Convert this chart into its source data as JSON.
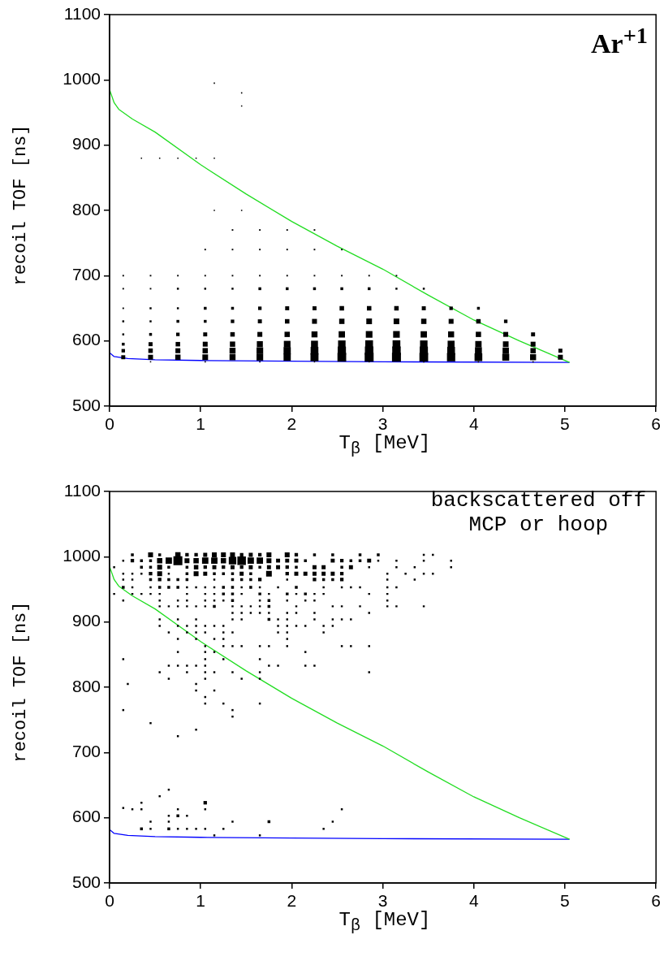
{
  "chart_data": [
    {
      "type": "bubble",
      "xlabel": "T$_{β}$ [MeV]",
      "ylabel": "recoil TOF [ns]",
      "xlim": [
        0,
        6
      ],
      "xticks": [
        0,
        1,
        2,
        3,
        4,
        5,
        6
      ],
      "ylim": [
        500,
        1100
      ],
      "yticks": [
        500,
        600,
        700,
        800,
        900,
        1000,
        1100
      ],
      "grid": false,
      "legend": false,
      "marker": "square",
      "annotations": [
        "Ar$^{+1}$"
      ],
      "series": [
        {
          "type": "bubble",
          "color": "#000000",
          "x": [
            0.15,
            0.45,
            0.75,
            1.05,
            1.35,
            1.65,
            1.95,
            2.25,
            2.55,
            2.85,
            3.15,
            3.45,
            3.75,
            4.05,
            4.35,
            4.65,
            4.95
          ],
          "values": [
            575,
            575,
            575,
            575,
            575,
            575,
            575,
            575,
            575,
            575,
            575,
            575,
            575,
            575,
            575,
            575,
            575
          ],
          "sizes": [
            0.2,
            0.3,
            0.35,
            0.4,
            0.45,
            0.55,
            0.65,
            0.8,
            0.95,
            1,
            1,
            0.95,
            0.85,
            0.75,
            0.6,
            0.45,
            0.3
          ]
        },
        {
          "type": "bubble",
          "color": "#000000",
          "x": [
            0.15,
            0.45,
            0.75,
            1.05,
            1.35,
            1.65,
            1.95,
            2.25,
            2.55,
            2.85,
            3.15,
            3.45,
            3.75,
            4.05,
            4.35,
            4.65,
            4.95
          ],
          "values": [
            585,
            585,
            585,
            585,
            585,
            585,
            585,
            585,
            585,
            585,
            585,
            585,
            585,
            585,
            585,
            585,
            585
          ],
          "sizes": [
            0.15,
            0.25,
            0.3,
            0.35,
            0.45,
            0.55,
            0.65,
            0.75,
            0.85,
            0.9,
            0.9,
            0.85,
            0.75,
            0.6,
            0.5,
            0.35,
            0.2
          ]
        },
        {
          "type": "bubble",
          "color": "#000000",
          "x": [
            0.15,
            0.45,
            0.75,
            1.05,
            1.35,
            1.65,
            1.95,
            2.25,
            2.55,
            2.85,
            3.15,
            3.45,
            3.75,
            4.05,
            4.35,
            4.65
          ],
          "values": [
            595,
            595,
            595,
            595,
            595,
            595,
            595,
            595,
            595,
            595,
            595,
            595,
            595,
            595,
            595,
            595
          ],
          "sizes": [
            0.1,
            0.2,
            0.25,
            0.3,
            0.35,
            0.45,
            0.55,
            0.6,
            0.7,
            0.75,
            0.75,
            0.7,
            0.6,
            0.5,
            0.4,
            0.3
          ]
        },
        {
          "type": "bubble",
          "color": "#000000",
          "x": [
            0.15,
            0.45,
            0.75,
            1.05,
            1.35,
            1.65,
            1.95,
            2.25,
            2.55,
            2.85,
            3.15,
            3.45,
            3.75,
            4.05,
            4.35,
            4.65
          ],
          "values": [
            610,
            610,
            610,
            610,
            610,
            610,
            610,
            610,
            610,
            610,
            610,
            610,
            610,
            610,
            610,
            610
          ],
          "sizes": [
            0.05,
            0.1,
            0.15,
            0.2,
            0.25,
            0.3,
            0.35,
            0.45,
            0.5,
            0.55,
            0.55,
            0.5,
            0.45,
            0.35,
            0.3,
            0.2
          ]
        },
        {
          "type": "bubble",
          "color": "#000000",
          "x": [
            0.15,
            0.45,
            0.75,
            1.05,
            1.35,
            1.65,
            1.95,
            2.25,
            2.55,
            2.85,
            3.15,
            3.45,
            3.75,
            4.05,
            4.35
          ],
          "values": [
            630,
            630,
            630,
            630,
            630,
            630,
            630,
            630,
            630,
            630,
            630,
            630,
            630,
            630,
            630
          ],
          "sizes": [
            0.05,
            0.05,
            0.1,
            0.1,
            0.15,
            0.2,
            0.25,
            0.3,
            0.35,
            0.4,
            0.4,
            0.35,
            0.3,
            0.25,
            0.15
          ]
        },
        {
          "type": "bubble",
          "color": "#000000",
          "x": [
            0.15,
            0.45,
            0.75,
            1.05,
            1.35,
            1.65,
            1.95,
            2.25,
            2.55,
            2.85,
            3.15,
            3.45,
            3.75,
            4.05
          ],
          "values": [
            650,
            650,
            650,
            650,
            650,
            650,
            650,
            650,
            650,
            650,
            650,
            650,
            650,
            650
          ],
          "sizes": [
            0.03,
            0.05,
            0.05,
            0.1,
            0.1,
            0.15,
            0.2,
            0.2,
            0.25,
            0.25,
            0.25,
            0.2,
            0.15,
            0.1
          ]
        },
        {
          "type": "bubble",
          "color": "#000000",
          "x": [
            0.15,
            0.45,
            0.75,
            1.05,
            1.35,
            1.65,
            1.95,
            2.25,
            2.55,
            2.85,
            3.15,
            3.45
          ],
          "values": [
            680,
            680,
            680,
            680,
            680,
            680,
            680,
            680,
            680,
            680,
            680,
            680
          ],
          "sizes": [
            0.03,
            0.03,
            0.05,
            0.05,
            0.05,
            0.1,
            0.1,
            0.1,
            0.1,
            0.1,
            0.05,
            0.05
          ]
        },
        {
          "type": "bubble",
          "color": "#000000",
          "x": [
            0.15,
            0.45,
            0.75,
            1.05,
            1.35,
            1.65,
            1.95,
            2.25,
            2.55,
            2.85,
            3.15
          ],
          "values": [
            700,
            700,
            700,
            700,
            700,
            700,
            700,
            700,
            700,
            700,
            700
          ],
          "sizes": [
            0.03,
            0.03,
            0.03,
            0.03,
            0.03,
            0.03,
            0.03,
            0.03,
            0.03,
            0.03,
            0.03
          ]
        },
        {
          "type": "bubble",
          "color": "#000000",
          "x": [
            1.05,
            1.35,
            1.65,
            1.95,
            2.25,
            2.55
          ],
          "values": [
            740,
            740,
            740,
            740,
            740,
            740
          ],
          "sizes": [
            0.03,
            0.03,
            0.03,
            0.03,
            0.03,
            0.03
          ]
        },
        {
          "type": "bubble",
          "color": "#000000",
          "x": [
            1.35,
            1.65,
            1.95,
            2.25
          ],
          "values": [
            770,
            770,
            770,
            770
          ],
          "sizes": [
            0.03,
            0.03,
            0.03,
            0.03
          ]
        },
        {
          "type": "bubble",
          "color": "#000000",
          "x": [
            1.15,
            1.45
          ],
          "values": [
            800,
            800
          ],
          "sizes": [
            0.02,
            0.02
          ]
        },
        {
          "type": "bubble",
          "color": "#000000",
          "x": [
            0.35,
            0.55,
            0.75,
            0.95,
            1.15
          ],
          "values": [
            880,
            880,
            880,
            880,
            880
          ],
          "sizes": [
            0.02,
            0.02,
            0.02,
            0.02,
            0.02
          ]
        },
        {
          "type": "bubble",
          "color": "#000000",
          "x": [
            1.45,
            1.45,
            1.15
          ],
          "values": [
            960,
            980,
            995
          ],
          "sizes": [
            0.02,
            0.02,
            0.02
          ]
        },
        {
          "type": "bubble",
          "color": "#000000",
          "x": [
            0.45,
            1.05,
            1.65,
            2.25,
            2.85,
            3.45,
            4.05,
            4.65
          ],
          "values": [
            568,
            568,
            568,
            568,
            568,
            568,
            568,
            568
          ],
          "sizes": [
            0.02,
            0.02,
            0.02,
            0.02,
            0.02,
            0.02,
            0.02,
            0.02
          ]
        },
        {
          "type": "line",
          "color": "#22dd22",
          "marker": "none",
          "x": [
            0,
            0.05,
            0.1,
            0.25,
            0.5,
            1,
            1.5,
            2,
            2.5,
            3,
            3.5,
            4,
            4.5,
            5.05
          ],
          "values": [
            985,
            965,
            955,
            940,
            920,
            870,
            825,
            783,
            745,
            710,
            670,
            632,
            600,
            567
          ]
        },
        {
          "type": "line",
          "color": "#0000ff",
          "marker": "none",
          "x": [
            0,
            0.05,
            0.2,
            0.5,
            1,
            2,
            3,
            5.05
          ],
          "values": [
            582,
            576,
            573,
            571,
            570,
            569,
            568,
            567
          ]
        }
      ]
    },
    {
      "type": "bubble",
      "xlabel": "T$_{β}$ [MeV]",
      "ylabel": "recoil TOF [ns]",
      "xlim": [
        0,
        6
      ],
      "xticks": [
        0,
        1,
        2,
        3,
        4,
        5,
        6
      ],
      "ylim": [
        500,
        1100
      ],
      "yticks": [
        500,
        600,
        700,
        800,
        900,
        1000,
        1100
      ],
      "grid": false,
      "legend": false,
      "marker": "square",
      "annotations": [
        "backscattered off\nMCP or hoop"
      ],
      "series": [
        {
          "type": "bubble",
          "color": "#000000",
          "x": [
            0.25,
            0.45,
            0.55,
            0.75,
            0.85,
            0.95,
            1.05,
            1.15,
            1.25,
            1.35,
            1.45,
            1.55,
            1.65,
            1.75,
            1.95,
            2.05,
            2.25,
            2.45,
            2.75,
            2.95,
            3.45,
            3.55
          ],
          "values": [
            1003,
            1003,
            1003,
            1003,
            1003,
            1003,
            1003,
            1003,
            1003,
            1003,
            1003,
            1003,
            1003,
            1003,
            1003,
            1003,
            1003,
            1003,
            1003,
            1003,
            1003,
            1003
          ],
          "sizes": [
            0.1,
            0.3,
            0.1,
            0.35,
            0.15,
            0.15,
            0.2,
            0.3,
            0.3,
            0.3,
            0.15,
            0.2,
            0.15,
            0.3,
            0.3,
            0.15,
            0.1,
            0.1,
            0.1,
            0.1,
            0.05,
            0.05
          ]
        },
        {
          "type": "bubble",
          "color": "#000000",
          "x": [
            0.15,
            0.25,
            0.35,
            0.45,
            0.55,
            0.65,
            0.75,
            0.85,
            0.95,
            1.05,
            1.15,
            1.25,
            1.35,
            1.45,
            1.55,
            1.65,
            1.75,
            1.85,
            1.95,
            2.05,
            2.15,
            2.45,
            2.55,
            2.65,
            2.75,
            2.85,
            2.95,
            3.15,
            3.45,
            3.75
          ],
          "values": [
            994,
            994,
            994,
            994,
            994,
            994,
            994,
            994,
            994,
            994,
            994,
            994,
            994,
            994,
            994,
            994,
            994,
            994,
            994,
            994,
            994,
            994,
            994,
            994,
            994,
            994,
            994,
            994,
            994,
            994
          ],
          "sizes": [
            0.05,
            0.15,
            0.1,
            0.1,
            0.35,
            0.5,
            1,
            0.3,
            0.35,
            0.5,
            0.5,
            0.35,
            0.7,
            0.9,
            0.5,
            0.5,
            0.3,
            0.2,
            0.2,
            0.2,
            0.1,
            0.2,
            0.15,
            0.1,
            0.1,
            0.2,
            0.05,
            0.05,
            0.05,
            0.05
          ]
        },
        {
          "type": "bubble",
          "color": "#000000",
          "x": [
            0.05,
            0.35,
            0.45,
            0.55,
            0.65,
            0.85,
            0.95,
            1.05,
            1.15,
            1.25,
            1.35,
            1.45,
            1.55,
            1.65,
            1.75,
            1.85,
            1.95,
            2.05,
            2.25,
            2.35,
            2.55,
            2.65,
            2.85,
            3.15,
            3.35,
            3.75
          ],
          "values": [
            984,
            984,
            984,
            984,
            984,
            984,
            984,
            984,
            984,
            984,
            984,
            984,
            984,
            984,
            984,
            984,
            984,
            984,
            984,
            984,
            984,
            984,
            984,
            984,
            984,
            984
          ],
          "sizes": [
            0.05,
            0.1,
            0.1,
            0.3,
            0.1,
            0.1,
            0.25,
            0.15,
            0.2,
            0.15,
            0.2,
            0.15,
            0.2,
            0.1,
            0.2,
            0.2,
            0.15,
            0.1,
            0.2,
            0.2,
            0.1,
            0.2,
            0.05,
            0.05,
            0.05,
            0.05
          ]
        },
        {
          "type": "bubble",
          "color": "#000000",
          "x": [
            0.15,
            0.25,
            0.35,
            0.45,
            0.55,
            0.65,
            0.85,
            0.95,
            1.05,
            1.15,
            1.25,
            1.35,
            1.45,
            1.55,
            1.75,
            1.95,
            2.05,
            2.15,
            2.25,
            2.35,
            2.45,
            2.55,
            3.05,
            3.25,
            3.45,
            3.55
          ],
          "values": [
            974,
            974,
            974,
            974,
            974,
            974,
            974,
            974,
            974,
            974,
            974,
            974,
            974,
            974,
            974,
            974,
            974,
            974,
            974,
            974,
            974,
            974,
            974,
            974,
            974,
            974
          ],
          "sizes": [
            0.05,
            0.05,
            0.05,
            0.15,
            0.3,
            0.05,
            0.1,
            0.3,
            0.2,
            0.1,
            0.1,
            0.1,
            0.2,
            0.1,
            0.4,
            0.15,
            0.2,
            0.2,
            0.2,
            0.2,
            0.2,
            0.15,
            0.05,
            0.05,
            0.05,
            0.05
          ]
        },
        {
          "type": "bubble",
          "color": "#000000",
          "x": [
            0.15,
            0.25,
            0.45,
            0.55,
            0.65,
            0.75,
            0.85,
            1.15,
            1.35,
            1.45,
            1.55,
            1.65,
            1.95,
            2.25,
            2.35,
            2.45,
            2.55,
            3.05,
            3.35
          ],
          "values": [
            965,
            965,
            965,
            965,
            965,
            965,
            965,
            965,
            965,
            965,
            965,
            965,
            965,
            965,
            965,
            965,
            965,
            965,
            965
          ],
          "sizes": [
            0.05,
            0.05,
            0.1,
            0.15,
            0.1,
            0.1,
            0.1,
            0.05,
            0.1,
            0.1,
            0.1,
            0.15,
            0.05,
            0.15,
            0.1,
            0.1,
            0.15,
            0.05,
            0.05
          ]
        },
        {
          "type": "bubble",
          "color": "#000000",
          "x": [
            0.15,
            0.25,
            0.45,
            0.55,
            0.65,
            0.75,
            0.85,
            0.95,
            1.05,
            1.15,
            1.25,
            1.35,
            1.45,
            1.55,
            1.65,
            1.85,
            2.05,
            2.35,
            2.55,
            2.65,
            2.75,
            3.05,
            3.15
          ],
          "values": [
            953,
            953,
            953,
            953,
            953,
            953,
            953,
            953,
            953,
            953,
            953,
            953,
            953,
            953,
            953,
            953,
            953,
            953,
            953,
            953,
            953,
            953,
            953
          ],
          "sizes": [
            0.1,
            0.05,
            0.05,
            0.1,
            0.1,
            0.1,
            0.05,
            0.05,
            0.05,
            0.05,
            0.1,
            0.1,
            0.05,
            0.1,
            0.05,
            0.05,
            0.1,
            0.05,
            0.05,
            0.05,
            0.05,
            0.05,
            0.05
          ]
        },
        {
          "type": "bubble",
          "color": "#000000",
          "x": [
            0.05,
            0.25,
            0.35,
            0.45,
            0.55,
            0.85,
            1.05,
            1.15,
            1.25,
            1.35,
            1.45,
            1.65,
            1.75,
            1.95,
            2.05,
            2.15,
            2.25,
            2.35,
            2.85,
            3.05
          ],
          "values": [
            943,
            943,
            943,
            943,
            943,
            943,
            943,
            943,
            943,
            943,
            943,
            943,
            943,
            943,
            943,
            943,
            943,
            943,
            943,
            943
          ],
          "sizes": [
            0.05,
            0.05,
            0.05,
            0.05,
            0.05,
            0.05,
            0.05,
            0.05,
            0.1,
            0.1,
            0.05,
            0.1,
            0.05,
            0.1,
            0.05,
            0.1,
            0.05,
            0.05,
            0.05,
            0.05
          ]
        },
        {
          "type": "bubble",
          "color": "#000000",
          "x": [
            0.15,
            0.55,
            0.75,
            0.85,
            1.05,
            1.15,
            1.25,
            1.35,
            1.65,
            1.75,
            1.95,
            2.15,
            2.25,
            3.05
          ],
          "values": [
            933,
            933,
            933,
            933,
            933,
            933,
            933,
            933,
            933,
            933,
            933,
            933,
            933,
            933
          ],
          "sizes": [
            0.05,
            0.05,
            0.05,
            0.05,
            0.05,
            0.05,
            0.05,
            0.1,
            0.05,
            0.1,
            0.05,
            0.05,
            0.05,
            0.05
          ]
        },
        {
          "type": "bubble",
          "color": "#000000",
          "x": [
            0.55,
            0.65,
            0.75,
            0.85,
            0.95,
            1.05,
            1.15,
            1.35,
            1.45,
            1.55,
            1.65,
            1.75,
            2.05,
            2.45,
            2.55,
            2.75,
            3.05,
            3.15,
            3.45
          ],
          "values": [
            924,
            924,
            924,
            924,
            924,
            924,
            924,
            924,
            924,
            924,
            924,
            924,
            924,
            924,
            924,
            924,
            924,
            924,
            924
          ],
          "sizes": [
            0.05,
            0.05,
            0.05,
            0.05,
            0.05,
            0.05,
            0.1,
            0.05,
            0.05,
            0.05,
            0.05,
            0.1,
            0.05,
            0.05,
            0.05,
            0.05,
            0.05,
            0.05,
            0.05
          ]
        },
        {
          "type": "bubble",
          "color": "#000000",
          "x": [
            1.35,
            1.45,
            1.55,
            1.65,
            1.75,
            1.95,
            2.05,
            2.25,
            2.85
          ],
          "values": [
            914,
            914,
            914,
            914,
            914,
            914,
            914,
            914,
            914
          ],
          "sizes": [
            0.05,
            0.05,
            0.05,
            0.05,
            0.05,
            0.05,
            0.05,
            0.05,
            0.05
          ]
        },
        {
          "type": "bubble",
          "color": "#000000",
          "x": [
            0.55,
            0.75,
            0.95,
            1.35,
            1.45,
            1.75,
            1.85,
            1.95,
            2.25,
            2.45,
            2.55,
            2.65
          ],
          "values": [
            904,
            904,
            904,
            904,
            904,
            904,
            904,
            904,
            904,
            904,
            904,
            904
          ],
          "sizes": [
            0.05,
            0.05,
            0.05,
            0.05,
            0.05,
            0.1,
            0.05,
            0.05,
            0.05,
            0.05,
            0.05,
            0.05
          ]
        },
        {
          "type": "bubble",
          "color": "#000000",
          "x": [
            0.55,
            0.75,
            0.85,
            0.95,
            1.05,
            1.15,
            1.25,
            1.85,
            1.95,
            2.05,
            2.15,
            2.35,
            2.45
          ],
          "values": [
            894,
            894,
            894,
            894,
            894,
            894,
            894,
            894,
            894,
            894,
            894,
            894,
            894
          ],
          "sizes": [
            0.05,
            0.05,
            0.05,
            0.05,
            0.05,
            0.05,
            0.05,
            0.05,
            0.05,
            0.05,
            0.05,
            0.05,
            0.05
          ]
        },
        {
          "type": "bubble",
          "color": "#000000",
          "x": [
            0.65,
            0.85,
            0.95,
            1.05,
            1.25,
            1.35,
            1.85,
            1.95,
            2.35
          ],
          "values": [
            884,
            884,
            884,
            884,
            884,
            884,
            884,
            884,
            884
          ],
          "sizes": [
            0.05,
            0.05,
            0.05,
            0.05,
            0.05,
            0.05,
            0.05,
            0.05,
            0.05
          ]
        },
        {
          "type": "bubble",
          "color": "#000000",
          "x": [
            0.75,
            0.95,
            1.15,
            1.25,
            1.95,
            1.05,
            1.25,
            1.35,
            1.45,
            1.65,
            1.75,
            1.95,
            2.55,
            2.65,
            2.85
          ],
          "values": [
            874,
            874,
            874,
            874,
            874,
            863,
            863,
            863,
            863,
            863,
            863,
            863,
            863,
            863,
            863
          ],
          "sizes": [
            0.05,
            0.05,
            0.05,
            0.05,
            0.05,
            0.05,
            0.05,
            0.05,
            0.05,
            0.05,
            0.05,
            0.05,
            0.05,
            0.05,
            0.05
          ]
        },
        {
          "type": "bubble",
          "color": "#000000",
          "x": [
            0.75,
            1.05,
            1.15,
            2.15,
            0.15,
            1.05,
            1.25,
            1.65,
            0.65,
            0.75,
            0.85,
            0.95,
            1.05,
            1.75,
            1.85,
            2.15,
            2.25
          ],
          "values": [
            854,
            854,
            854,
            854,
            843,
            843,
            843,
            843,
            833,
            833,
            833,
            833,
            833,
            833,
            833,
            833,
            833
          ],
          "sizes": [
            0.05,
            0.05,
            0.05,
            0.05,
            0.05,
            0.05,
            0.05,
            0.05,
            0.05,
            0.05,
            0.05,
            0.05,
            0.05,
            0.05,
            0.05,
            0.05,
            0.05
          ]
        },
        {
          "type": "bubble",
          "color": "#000000",
          "x": [
            0.55,
            0.85,
            1.05,
            1.15,
            1.35,
            1.65,
            2.85,
            0.65,
            1.05,
            1.45,
            1.65,
            0.2,
            0.95,
            0.95,
            1.15,
            1.05,
            1.05,
            1.25,
            1.65,
            0.15,
            1.35,
            1.35,
            0.45,
            0.95,
            0.75
          ],
          "values": [
            823,
            823,
            823,
            823,
            823,
            823,
            823,
            813,
            813,
            813,
            813,
            805,
            805,
            795,
            795,
            785,
            775,
            775,
            775,
            765,
            765,
            755,
            745,
            735,
            725
          ],
          "sizes": [
            0.05,
            0.05,
            0.05,
            0.05,
            0.05,
            0.05,
            0.05,
            0.05,
            0.05,
            0.05,
            0.05,
            0.05,
            0.05,
            0.05,
            0.05,
            0.05,
            0.05,
            0.05,
            0.05,
            0.05,
            0.05,
            0.05,
            0.05,
            0.05,
            0.05
          ]
        },
        {
          "type": "bubble",
          "color": "#000000",
          "x": [
            0.65,
            0.55,
            0.35,
            1.05,
            0.15,
            0.25,
            0.35,
            0.75,
            1.05,
            2.55,
            0.65,
            0.75,
            0.85,
            0.45,
            0.65,
            1.35,
            1.75,
            2.45,
            0.35,
            0.45,
            0.65,
            0.75,
            0.85,
            0.95,
            1.05,
            1.25,
            2.35,
            1.15,
            1.65
          ],
          "values": [
            643,
            633,
            623,
            623,
            615,
            613,
            613,
            613,
            613,
            613,
            603,
            603,
            603,
            594,
            594,
            594,
            594,
            594,
            583,
            583,
            583,
            583,
            583,
            583,
            583,
            583,
            583,
            573,
            573
          ],
          "sizes": [
            0.05,
            0.05,
            0.05,
            0.15,
            0.05,
            0.05,
            0.05,
            0.05,
            0.05,
            0.05,
            0.05,
            0.1,
            0.05,
            0.05,
            0.05,
            0.05,
            0.1,
            0.05,
            0.1,
            0.05,
            0.1,
            0.05,
            0.05,
            0.05,
            0.05,
            0.05,
            0.05,
            0.05,
            0.05
          ]
        },
        {
          "type": "line",
          "color": "#22dd22",
          "marker": "none",
          "x": [
            0,
            0.05,
            0.1,
            0.25,
            0.5,
            1,
            1.5,
            2,
            2.5,
            3,
            3.5,
            4,
            4.5,
            5.05
          ],
          "values": [
            985,
            965,
            955,
            940,
            920,
            870,
            825,
            783,
            745,
            710,
            670,
            632,
            600,
            567
          ]
        },
        {
          "type": "line",
          "color": "#0000ff",
          "marker": "none",
          "x": [
            0,
            0.05,
            0.2,
            0.5,
            1,
            2,
            3,
            5.05
          ],
          "values": [
            582,
            576,
            573,
            571,
            570,
            569,
            568,
            567
          ]
        }
      ]
    }
  ]
}
